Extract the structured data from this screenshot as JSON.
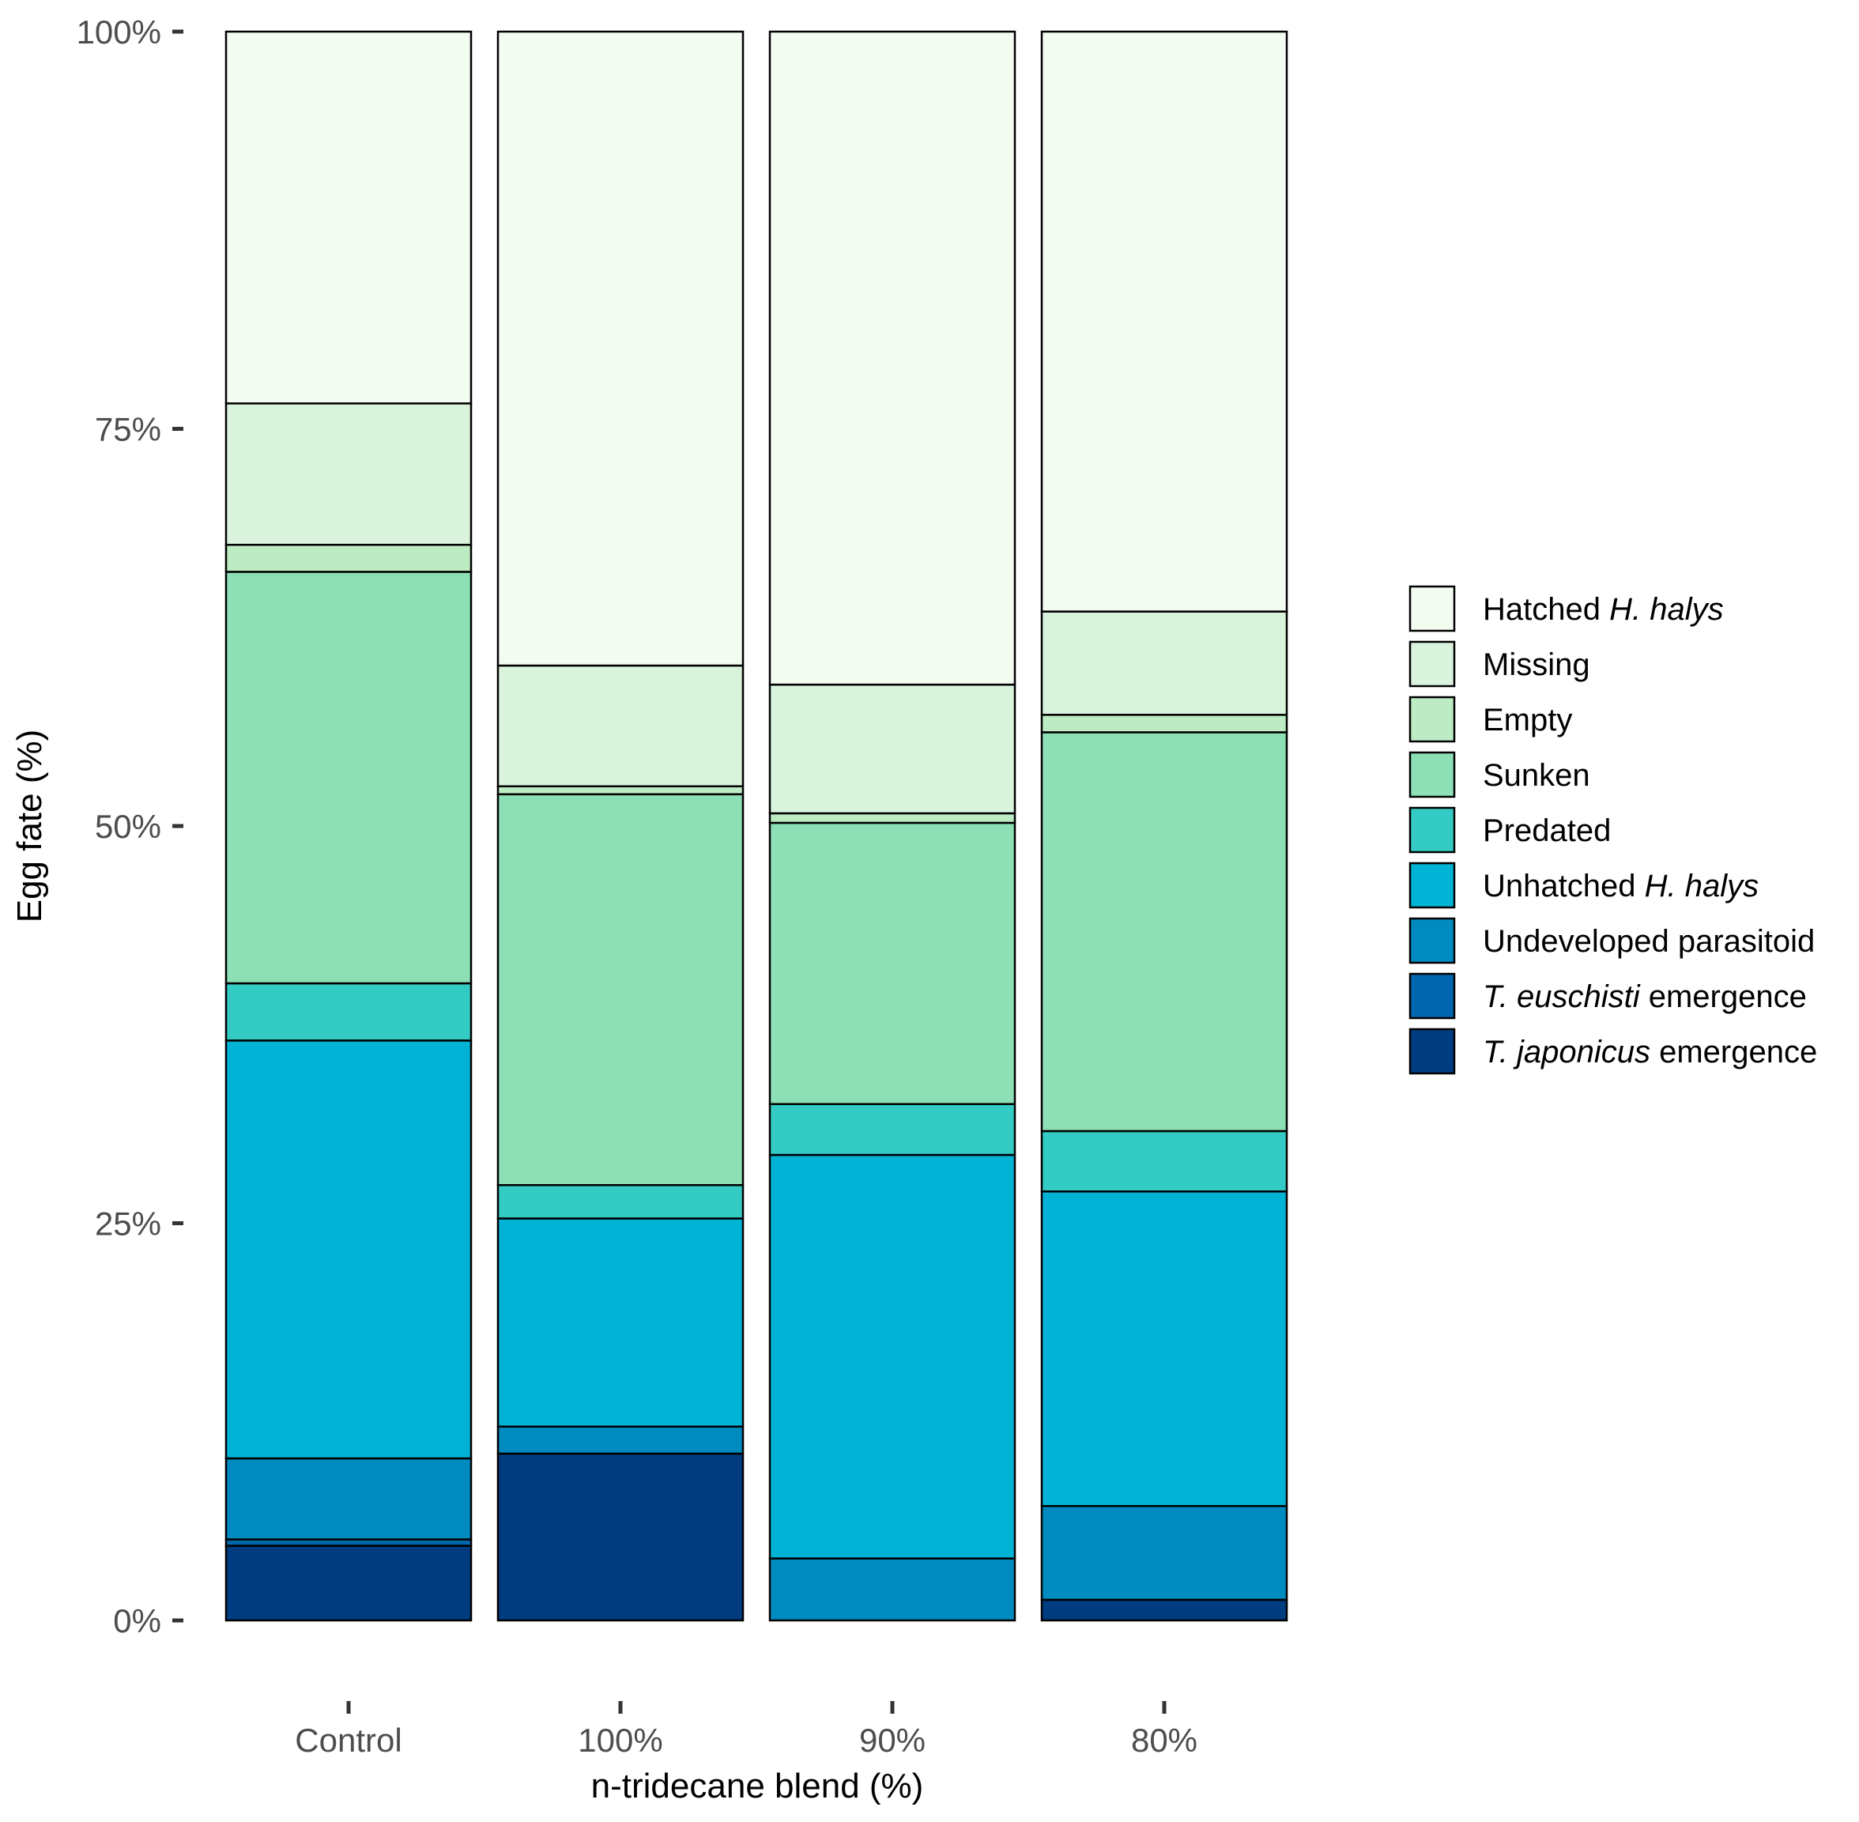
{
  "chart_data": {
    "type": "bar",
    "stacked": true,
    "normalized_percent": true,
    "title": "",
    "xlabel": "n-tridecane blend (%)",
    "ylabel": "Egg fate (%)",
    "ylim": [
      0,
      100
    ],
    "yticks": [
      0,
      25,
      50,
      75,
      100
    ],
    "ytick_labels": [
      "0%",
      "25%",
      "50%",
      "75%",
      "100%"
    ],
    "categories": [
      "Control",
      "100%",
      "90%",
      "80%"
    ],
    "grid": false,
    "legend_position": "right",
    "series": [
      {
        "name": "T. japonicus emergence",
        "legend": [
          {
            "text": "T. japonicus",
            "italic": true
          },
          {
            "text": " emergence",
            "italic": false
          }
        ],
        "color": "#003c80",
        "values": [
          4.7,
          10.5,
          0.0,
          1.3
        ]
      },
      {
        "name": "T. euschisti emergence",
        "legend": [
          {
            "text": "T. euschisti",
            "italic": true
          },
          {
            "text": " emergence",
            "italic": false
          }
        ],
        "color": "#0066ae",
        "values": [
          0.4,
          0.0,
          0.0,
          0.0
        ]
      },
      {
        "name": "Undeveloped parasitoid",
        "legend": [
          {
            "text": "Undeveloped parasitoid",
            "italic": false
          }
        ],
        "color": "#008bc0",
        "values": [
          5.1,
          1.7,
          3.9,
          5.9
        ]
      },
      {
        "name": "Unhatched H. halys",
        "legend": [
          {
            "text": "Unhatched ",
            "italic": false
          },
          {
            "text": "H. halys",
            "italic": true
          }
        ],
        "color": "#00b3d5",
        "values": [
          26.3,
          13.1,
          25.4,
          19.8
        ]
      },
      {
        "name": "Predated",
        "legend": [
          {
            "text": "Predated",
            "italic": false
          }
        ],
        "color": "#33cbc4",
        "values": [
          3.6,
          2.1,
          3.2,
          3.8
        ]
      },
      {
        "name": "Sunken",
        "legend": [
          {
            "text": "Sunken",
            "italic": false
          }
        ],
        "color": "#8ddfb5",
        "values": [
          25.9,
          24.6,
          17.7,
          25.1
        ]
      },
      {
        "name": "Empty",
        "legend": [
          {
            "text": "Empty",
            "italic": false
          }
        ],
        "color": "#bdebc4",
        "values": [
          1.7,
          0.5,
          0.6,
          1.1
        ]
      },
      {
        "name": "Missing",
        "legend": [
          {
            "text": "Missing",
            "italic": false
          }
        ],
        "color": "#daf3dc",
        "values": [
          8.9,
          7.6,
          8.1,
          6.5
        ]
      },
      {
        "name": "Hatched H. halys",
        "legend": [
          {
            "text": "Hatched ",
            "italic": false
          },
          {
            "text": "H. halys",
            "italic": true
          }
        ],
        "color": "#f3fcf0",
        "values": [
          23.4,
          39.9,
          41.1,
          36.5
        ]
      }
    ]
  }
}
